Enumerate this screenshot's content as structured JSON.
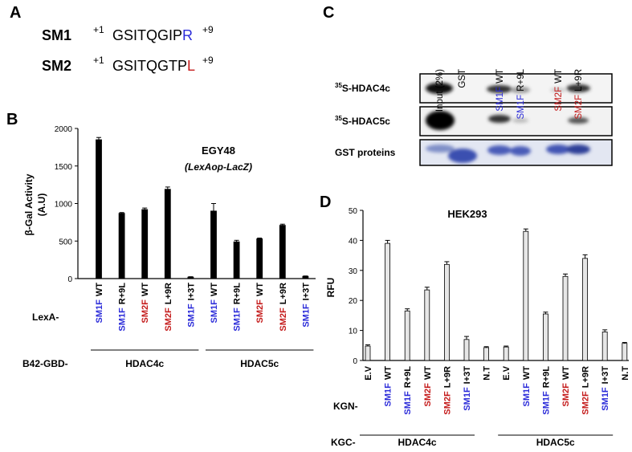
{
  "panel_a": {
    "label": "A",
    "rows": [
      {
        "name": "SM1",
        "color": "#2b2bd9",
        "start": "+1",
        "sequence": "GSITQGIP",
        "residue": "R",
        "end": "+9"
      },
      {
        "name": "SM2",
        "color": "#c41a1a",
        "start": "+1",
        "sequence": "GSITQGTP",
        "residue": "L",
        "end": "+9"
      }
    ]
  },
  "panel_c": {
    "label": "C",
    "lanes": [
      [
        "Input (2%)"
      ],
      [
        "GST"
      ],
      [
        "SM1F",
        "WT"
      ],
      [
        "SM1F",
        "R+9L"
      ],
      [
        "SM2F",
        "WT"
      ],
      [
        "SM2F",
        "L+9R"
      ]
    ],
    "rows": [
      {
        "sup": "35",
        "text": "S-HDAC4c"
      },
      {
        "sup": "35",
        "text": "S-HDAC5c"
      },
      {
        "text": "GST proteins"
      }
    ]
  },
  "chart_data": [
    {
      "type": "bar",
      "panel": "B",
      "title": "EGY48",
      "subtitle": "(LexAop-LacZ)",
      "ylabel": [
        "β-Gal Activity",
        "(A.U)"
      ],
      "categories": [
        [
          "SM1F",
          "WT"
        ],
        [
          "SM1F",
          "R+9L"
        ],
        [
          "SM2F",
          "WT"
        ],
        [
          "SM2F",
          "L+9R"
        ],
        [
          "SM1F",
          "I+3T"
        ],
        [
          "SM1F",
          "WT"
        ],
        [
          "SM1F",
          "R+9L"
        ],
        [
          "SM2F",
          "WT"
        ],
        [
          "SM2F",
          "L+9R"
        ],
        [
          "SM1F",
          "I+3T"
        ]
      ],
      "values": [
        1850,
        870,
        920,
        1190,
        20,
        900,
        490,
        530,
        710,
        30
      ],
      "errors": [
        30,
        10,
        20,
        30,
        5,
        100,
        20,
        10,
        15,
        5
      ],
      "color": "#000000",
      "label_colors": {
        "SM1F": "#2b2bd9",
        "SM2F": "#c41a1a"
      },
      "ylim": [
        0,
        2000
      ],
      "yticks": [
        0,
        500,
        1000,
        1500,
        2000
      ],
      "row_labels": [
        "LexA-",
        "B42-GBD-"
      ],
      "groups": [
        "HDAC4c",
        "HDAC5c"
      ]
    },
    {
      "type": "bar",
      "panel": "D",
      "title": "HEK293",
      "ylabel": [
        "RFU"
      ],
      "categories": [
        [
          "E.V"
        ],
        [
          "SM1F",
          "WT"
        ],
        [
          "SM1F",
          "R+9L"
        ],
        [
          "SM2F",
          "WT"
        ],
        [
          "SM2F",
          "L+9R"
        ],
        [
          "SM1F",
          "I+3T"
        ],
        [
          "N.T"
        ],
        [
          "E.V"
        ],
        [
          "SM1F",
          "WT"
        ],
        [
          "SM1F",
          "R+9L"
        ],
        [
          "SM2F",
          "WT"
        ],
        [
          "SM2F",
          "L+9R"
        ],
        [
          "SM1F",
          "I+3T"
        ],
        [
          "N.T"
        ]
      ],
      "values": [
        4.8,
        39,
        16.5,
        23.5,
        32,
        7,
        4.3,
        4.5,
        43,
        15.5,
        28,
        34,
        9.5,
        5.7
      ],
      "errors": [
        0.4,
        1,
        0.7,
        0.9,
        0.9,
        1,
        0.3,
        0.3,
        0.8,
        0.6,
        0.8,
        1.2,
        0.7,
        0.3
      ],
      "color": "#e6e6e6",
      "label_colors": {
        "SM1F": "#2b2bd9",
        "SM2F": "#c41a1a"
      },
      "ylim": [
        0,
        50
      ],
      "yticks": [
        0,
        10,
        20,
        30,
        40,
        50
      ],
      "row_labels": [
        "KGN-",
        "KGC-"
      ],
      "groups": [
        "HDAC4c",
        "HDAC5c"
      ]
    }
  ]
}
